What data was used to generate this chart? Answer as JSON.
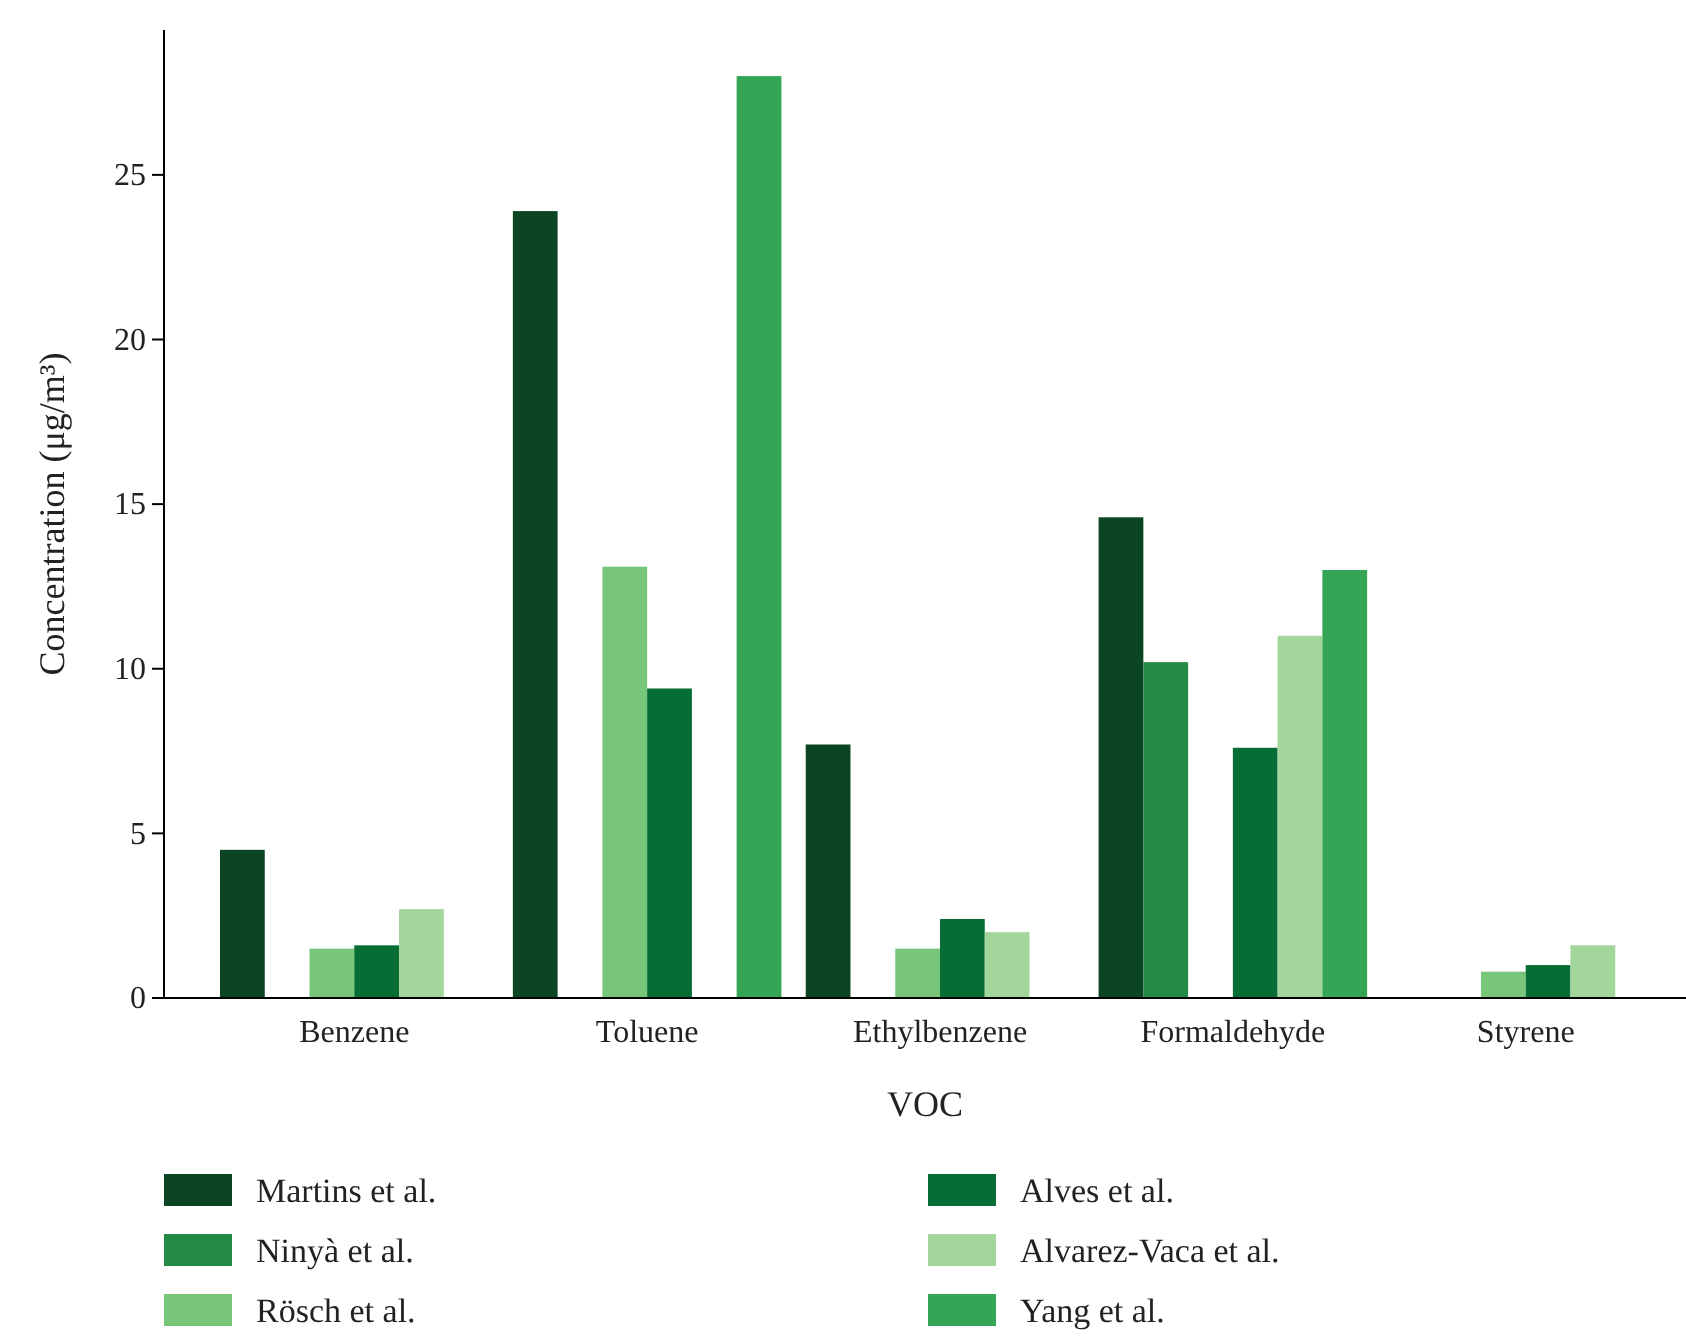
{
  "chart_data": {
    "type": "bar",
    "xlabel": "VOC",
    "ylabel": "Concentration (μg/m³)",
    "categories": [
      "Benzene",
      "Toluene",
      "Ethylbenzene",
      "Formaldehyde",
      "Styrene"
    ],
    "series": [
      {
        "name": "Martins et al.",
        "color": "#0b4522",
        "values": [
          4.5,
          23.9,
          7.7,
          14.6,
          null
        ]
      },
      {
        "name": "Ninyà et al.",
        "color": "#238a45",
        "values": [
          null,
          null,
          null,
          10.2,
          null
        ]
      },
      {
        "name": "Rösch et al.",
        "color": "#78c679",
        "values": [
          1.5,
          13.1,
          1.5,
          null,
          0.8
        ]
      },
      {
        "name": "Alves et al.",
        "color": "#066d35",
        "values": [
          1.6,
          9.4,
          2.4,
          7.6,
          1.0
        ]
      },
      {
        "name": "Alvarez-Vaca et al.",
        "color": "#a3d69b",
        "values": [
          2.7,
          null,
          2.0,
          11.0,
          1.6
        ]
      },
      {
        "name": "Yang et al.",
        "color": "#33a555",
        "values": [
          null,
          28.0,
          null,
          13.0,
          null
        ]
      }
    ],
    "ylim": [
      0,
      29.4
    ],
    "yticks": [
      0,
      5,
      10,
      15,
      20,
      25
    ],
    "grid": false,
    "legend": "bottom"
  }
}
